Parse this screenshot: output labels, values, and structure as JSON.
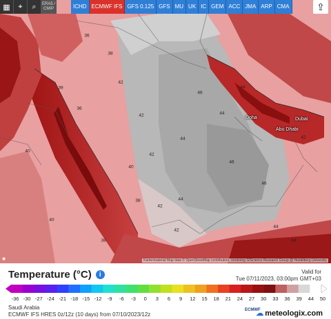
{
  "toolbar": {
    "icons": [
      "hd-icon",
      "location-icon",
      "zoom-icon"
    ],
    "grey_label": "ERA5 / CMIP"
  },
  "models": [
    {
      "label": "ICHD",
      "active": false
    },
    {
      "label": "ECMWF IFS",
      "active": true
    },
    {
      "label": "GFS 0.125",
      "active": false
    },
    {
      "label": "GFS",
      "active": false
    },
    {
      "label": "MU",
      "active": false
    },
    {
      "label": "UK",
      "active": false
    },
    {
      "label": "IC",
      "active": false
    },
    {
      "label": "GEM",
      "active": false
    },
    {
      "label": "ACC",
      "active": false
    },
    {
      "label": "JMA",
      "active": false
    },
    {
      "label": "ARP",
      "active": false
    },
    {
      "label": "CMA",
      "active": false
    }
  ],
  "map": {
    "temps": [
      "36",
      "38",
      "39",
      "42",
      "44",
      "46",
      "40",
      "42",
      "42",
      "40",
      "44",
      "44",
      "46",
      "46",
      "44",
      "42",
      "38",
      "42",
      "44",
      "42",
      "40",
      "36",
      "38",
      "44"
    ],
    "cities": [
      "Doha",
      "Abu Dhabi",
      "Dubai"
    ],
    "attribution": "Kartenmaterial  Map data © OpenStreetMap contributors, rendering GIScience Research Group @ Heidelberg University"
  },
  "legend": {
    "title": "Temperature (°C)",
    "valid_label": "Valid for",
    "valid_time": "Tue 07/11/2023, 03:00pm GMT+03",
    "ticks": [
      "-36",
      "-30",
      "-27",
      "-24",
      "-21",
      "-18",
      "-15",
      "-12",
      "-9",
      "-6",
      "-3",
      "0",
      "3",
      "6",
      "9",
      "12",
      "15",
      "18",
      "21",
      "24",
      "27",
      "30",
      "33",
      "36",
      "39",
      "44",
      "50"
    ],
    "colors": [
      "#c000c0",
      "#9a00d0",
      "#7a10e0",
      "#5a20f0",
      "#3040ff",
      "#2070ff",
      "#10a0ff",
      "#10c8f0",
      "#20e0d0",
      "#30e0a0",
      "#40e070",
      "#60e040",
      "#90e030",
      "#c0e020",
      "#e8e020",
      "#f0c020",
      "#f0a020",
      "#f07020",
      "#e84020",
      "#d82020",
      "#b81818",
      "#9a1010",
      "#801010",
      "#c06060",
      "#d0a0a0",
      "#d8d8d8",
      "#ffffff"
    ]
  },
  "footer": {
    "region": "Saudi Arabia",
    "model_run": "ECMWF IFS HRES 0z/12z (10 days) from 07/10/2023/12z",
    "brand": "meteologix.com",
    "ecmwf": "ECMWF"
  }
}
